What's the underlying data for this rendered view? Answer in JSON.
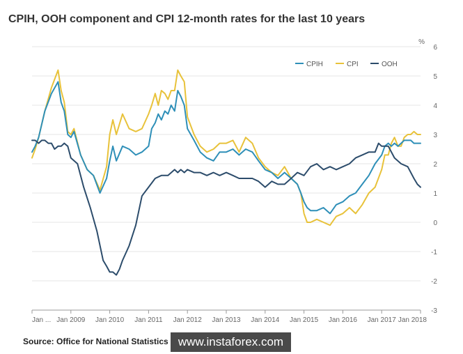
{
  "title": "CPIH, OOH component and CPI 12-month rates for the last 10 years",
  "source": "Source: Office for National Statistics",
  "watermark": "www.instaforex.com",
  "colors": {
    "CPIH": "#2e8fb8",
    "CPI": "#e8c23a",
    "OOH": "#2c4c6b",
    "grid": "#e6e6e6",
    "axis": "#999999"
  },
  "chart_data": {
    "type": "line",
    "title": "CPIH, OOH component and CPI 12-month rates for the last 10 years",
    "ylabel": "%",
    "ylim": [
      -3,
      6
    ],
    "yticks": [
      -3,
      -2,
      -1,
      0,
      1,
      2,
      3,
      4,
      5,
      6
    ],
    "xlim": [
      2008.0,
      2018.0
    ],
    "xticks": [
      {
        "x": 2008.0,
        "label": "Jan ..."
      },
      {
        "x": 2009.0,
        "label": "Jan 2009"
      },
      {
        "x": 2010.0,
        "label": "Jan 2010"
      },
      {
        "x": 2011.0,
        "label": "Jan 2011"
      },
      {
        "x": 2012.0,
        "label": "Jan 2012"
      },
      {
        "x": 2013.0,
        "label": "Jan 2013"
      },
      {
        "x": 2014.0,
        "label": "Jan 2014"
      },
      {
        "x": 2015.0,
        "label": "Jan 2015"
      },
      {
        "x": 2016.0,
        "label": "Jan 2016"
      },
      {
        "x": 2017.0,
        "label": "Jan 2017"
      },
      {
        "x": 2018.0,
        "label": "Jan 2018"
      }
    ],
    "grid": "horizontal",
    "legend_position": "top-right",
    "series": [
      {
        "name": "CPIH",
        "x": [
          2008.0,
          2008.08,
          2008.17,
          2008.33,
          2008.5,
          2008.67,
          2008.75,
          2008.83,
          2008.92,
          2009.0,
          2009.08,
          2009.25,
          2009.42,
          2009.58,
          2009.75,
          2009.92,
          2010.0,
          2010.08,
          2010.17,
          2010.33,
          2010.5,
          2010.67,
          2010.83,
          2011.0,
          2011.08,
          2011.17,
          2011.25,
          2011.33,
          2011.42,
          2011.5,
          2011.58,
          2011.67,
          2011.75,
          2011.83,
          2011.92,
          2012.0,
          2012.17,
          2012.33,
          2012.5,
          2012.67,
          2012.83,
          2013.0,
          2013.17,
          2013.33,
          2013.5,
          2013.67,
          2013.83,
          2014.0,
          2014.17,
          2014.33,
          2014.5,
          2014.67,
          2014.83,
          2014.92,
          2015.0,
          2015.08,
          2015.17,
          2015.33,
          2015.5,
          2015.67,
          2015.83,
          2016.0,
          2016.17,
          2016.33,
          2016.5,
          2016.67,
          2016.83,
          2017.0,
          2017.08,
          2017.17,
          2017.25,
          2017.33,
          2017.42,
          2017.5,
          2017.58,
          2017.67,
          2017.75,
          2017.83,
          2017.92,
          2018.0
        ],
        "values": [
          2.4,
          2.6,
          2.9,
          3.8,
          4.4,
          4.8,
          4.1,
          3.8,
          3.0,
          2.9,
          3.1,
          2.3,
          1.8,
          1.6,
          1.0,
          1.5,
          2.1,
          2.6,
          2.1,
          2.6,
          2.5,
          2.3,
          2.4,
          2.6,
          3.2,
          3.4,
          3.7,
          3.5,
          3.8,
          3.7,
          4.0,
          3.8,
          4.5,
          4.3,
          4.0,
          3.2,
          2.8,
          2.4,
          2.2,
          2.1,
          2.4,
          2.4,
          2.5,
          2.3,
          2.5,
          2.4,
          2.1,
          1.8,
          1.7,
          1.5,
          1.7,
          1.5,
          1.3,
          1.0,
          0.7,
          0.5,
          0.4,
          0.4,
          0.5,
          0.3,
          0.6,
          0.7,
          0.9,
          1.0,
          1.3,
          1.6,
          2.0,
          2.3,
          2.6,
          2.7,
          2.6,
          2.7,
          2.6,
          2.7,
          2.8,
          2.8,
          2.8,
          2.7,
          2.7,
          2.7
        ]
      },
      {
        "name": "CPI",
        "x": [
          2008.0,
          2008.08,
          2008.17,
          2008.33,
          2008.5,
          2008.67,
          2008.75,
          2008.83,
          2008.92,
          2009.0,
          2009.08,
          2009.25,
          2009.42,
          2009.58,
          2009.75,
          2009.92,
          2010.0,
          2010.08,
          2010.17,
          2010.33,
          2010.5,
          2010.67,
          2010.83,
          2011.0,
          2011.08,
          2011.17,
          2011.25,
          2011.33,
          2011.42,
          2011.5,
          2011.58,
          2011.67,
          2011.75,
          2011.83,
          2011.92,
          2012.0,
          2012.17,
          2012.33,
          2012.5,
          2012.67,
          2012.83,
          2013.0,
          2013.17,
          2013.33,
          2013.5,
          2013.67,
          2013.83,
          2014.0,
          2014.17,
          2014.33,
          2014.5,
          2014.67,
          2014.83,
          2014.92,
          2015.0,
          2015.08,
          2015.17,
          2015.33,
          2015.5,
          2015.67,
          2015.83,
          2016.0,
          2016.17,
          2016.33,
          2016.5,
          2016.67,
          2016.83,
          2017.0,
          2017.08,
          2017.17,
          2017.25,
          2017.33,
          2017.42,
          2017.5,
          2017.58,
          2017.67,
          2017.75,
          2017.83,
          2017.92,
          2018.0
        ],
        "values": [
          2.2,
          2.5,
          2.9,
          3.8,
          4.6,
          5.2,
          4.5,
          4.1,
          3.1,
          3.0,
          3.2,
          2.3,
          1.8,
          1.6,
          1.1,
          1.9,
          3.0,
          3.5,
          3.0,
          3.7,
          3.2,
          3.1,
          3.2,
          3.7,
          4.0,
          4.4,
          4.0,
          4.5,
          4.4,
          4.2,
          4.5,
          4.5,
          5.2,
          5.0,
          4.8,
          3.6,
          3.0,
          2.6,
          2.4,
          2.5,
          2.7,
          2.7,
          2.8,
          2.4,
          2.9,
          2.7,
          2.2,
          1.9,
          1.7,
          1.6,
          1.9,
          1.5,
          1.3,
          1.0,
          0.3,
          0.0,
          0.0,
          0.1,
          0.0,
          -0.1,
          0.2,
          0.3,
          0.5,
          0.3,
          0.6,
          1.0,
          1.2,
          1.8,
          2.3,
          2.3,
          2.7,
          2.9,
          2.6,
          2.6,
          2.9,
          3.0,
          3.0,
          3.1,
          3.0,
          3.0
        ]
      },
      {
        "name": "OOH",
        "x": [
          2008.0,
          2008.08,
          2008.17,
          2008.25,
          2008.33,
          2008.42,
          2008.5,
          2008.58,
          2008.67,
          2008.75,
          2008.83,
          2008.92,
          2009.0,
          2009.17,
          2009.33,
          2009.5,
          2009.67,
          2009.83,
          2009.92,
          2010.0,
          2010.08,
          2010.17,
          2010.25,
          2010.33,
          2010.5,
          2010.67,
          2010.83,
          2011.0,
          2011.17,
          2011.33,
          2011.5,
          2011.67,
          2011.75,
          2011.83,
          2011.92,
          2012.0,
          2012.17,
          2012.33,
          2012.5,
          2012.67,
          2012.83,
          2013.0,
          2013.17,
          2013.33,
          2013.5,
          2013.67,
          2013.83,
          2014.0,
          2014.17,
          2014.33,
          2014.5,
          2014.67,
          2014.83,
          2015.0,
          2015.17,
          2015.33,
          2015.5,
          2015.67,
          2015.83,
          2016.0,
          2016.17,
          2016.33,
          2016.5,
          2016.67,
          2016.83,
          2016.92,
          2017.0,
          2017.17,
          2017.33,
          2017.5,
          2017.67,
          2017.83,
          2017.92,
          2018.0
        ],
        "values": [
          2.8,
          2.8,
          2.7,
          2.8,
          2.8,
          2.7,
          2.7,
          2.5,
          2.6,
          2.6,
          2.7,
          2.6,
          2.2,
          2.0,
          1.2,
          0.5,
          -0.3,
          -1.3,
          -1.5,
          -1.7,
          -1.7,
          -1.8,
          -1.6,
          -1.3,
          -0.8,
          -0.1,
          0.9,
          1.2,
          1.5,
          1.6,
          1.6,
          1.8,
          1.7,
          1.8,
          1.7,
          1.8,
          1.7,
          1.7,
          1.6,
          1.7,
          1.6,
          1.7,
          1.6,
          1.5,
          1.5,
          1.5,
          1.4,
          1.2,
          1.4,
          1.3,
          1.3,
          1.5,
          1.7,
          1.6,
          1.9,
          2.0,
          1.8,
          1.9,
          1.8,
          1.9,
          2.0,
          2.2,
          2.3,
          2.4,
          2.4,
          2.7,
          2.6,
          2.6,
          2.2,
          2.0,
          1.9,
          1.5,
          1.3,
          1.2
        ]
      }
    ]
  }
}
